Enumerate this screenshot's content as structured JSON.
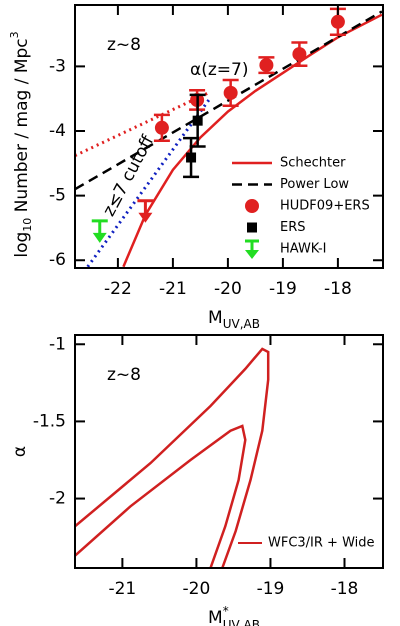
{
  "chart_data": [
    {
      "type": "scatter",
      "xlim": [
        -22.78,
        -17.18
      ],
      "ylim": [
        -6.12,
        -2.05
      ],
      "xticks": [
        -22,
        -21,
        -20,
        -19,
        -18
      ],
      "yticks": [
        -6,
        -5,
        -4,
        -3
      ],
      "xlabel": {
        "main": "M",
        "sub": "UV,AB"
      },
      "ylabel": {
        "pre": "log",
        "sub": "10",
        "main": " Number / mag / Mpc",
        "sup": "3"
      },
      "annotation": "z~8",
      "series": [
        {
          "name": "Schechter",
          "style": "line",
          "color": "#e02020",
          "x": [
            -21.9,
            -21.5,
            -21,
            -20.5,
            -20,
            -19.5,
            -19,
            -18.5,
            -18,
            -17.2
          ],
          "y": [
            -6.1,
            -5.3,
            -4.6,
            -4.1,
            -3.7,
            -3.38,
            -3.1,
            -2.82,
            -2.55,
            -2.2
          ]
        },
        {
          "name": "Power Low",
          "style": "dashed",
          "color": "#000000",
          "x": [
            -22.78,
            -17.2
          ],
          "y": [
            -4.9,
            -2.15
          ]
        },
        {
          "name": "HUDF09+ERS",
          "style": "points",
          "marker": "circle",
          "color": "#e02020",
          "x": [
            -21.2,
            -20.56,
            -19.95,
            -19.3,
            -18.7,
            -18.0
          ],
          "y": [
            -3.95,
            -3.52,
            -3.41,
            -2.98,
            -2.81,
            -2.31
          ],
          "err": [
            0.2,
            0.15,
            0.2,
            0.12,
            0.18,
            0.2
          ]
        },
        {
          "name": "ERS",
          "style": "points",
          "marker": "square",
          "color": "#000000",
          "x": [
            -20.67,
            -20.55
          ],
          "y": [
            -4.41,
            -3.84
          ],
          "err": [
            0.3,
            0.4
          ]
        },
        {
          "name": "HAWK-I",
          "style": "upper_limit",
          "color": "#22dd22",
          "x": [
            -22.33
          ],
          "y": [
            -5.39
          ]
        }
      ],
      "limits": [
        {
          "style": "upper_limit",
          "color": "#e02020",
          "x": [
            -21.5
          ],
          "y": [
            -5.08
          ]
        }
      ],
      "curves": [
        {
          "label": "α(z=7)",
          "style": "dotted",
          "color": "#e02020",
          "x": [
            -22.78,
            -20.33
          ],
          "y": [
            -4.38,
            -3.4
          ]
        },
        {
          "label": "z≤7 cutoff",
          "style": "dotted",
          "color": "#1020c0",
          "x": [
            -22.55,
            -20.33
          ],
          "y": [
            -6.1,
            -3.5
          ]
        }
      ]
    },
    {
      "type": "line",
      "xlim": [
        -21.64,
        -17.48
      ],
      "ylim": [
        -2.45,
        -0.94
      ],
      "xticks": [
        -21,
        -20,
        -19,
        -18
      ],
      "yticks": [
        -2,
        -1.5,
        -1
      ],
      "xlabel": {
        "main": "M",
        "sup": "*",
        "sub": "UV,AB"
      },
      "ylabel": "α",
      "annotation": "z~8",
      "series": [
        {
          "name": "WFC3/IR + Wide",
          "color": "#d02020",
          "x": [
            -21.64,
            -20.62,
            -19.81,
            -19.34,
            -19.11,
            -19.03,
            -19.03,
            -19.11,
            -19.27,
            -19.47,
            -19.65,
            null,
            -21.64,
            -20.89,
            -20.08,
            -19.54,
            -19.38,
            -19.34,
            -19.43,
            -19.61,
            -19.81
          ],
          "y": [
            -2.18,
            -1.77,
            -1.4,
            -1.16,
            -1.03,
            -1.05,
            -1.23,
            -1.56,
            -1.88,
            -2.21,
            -2.45,
            null,
            -2.37,
            -2.05,
            -1.75,
            -1.56,
            -1.53,
            -1.62,
            -1.88,
            -2.18,
            -2.45
          ]
        }
      ]
    }
  ]
}
